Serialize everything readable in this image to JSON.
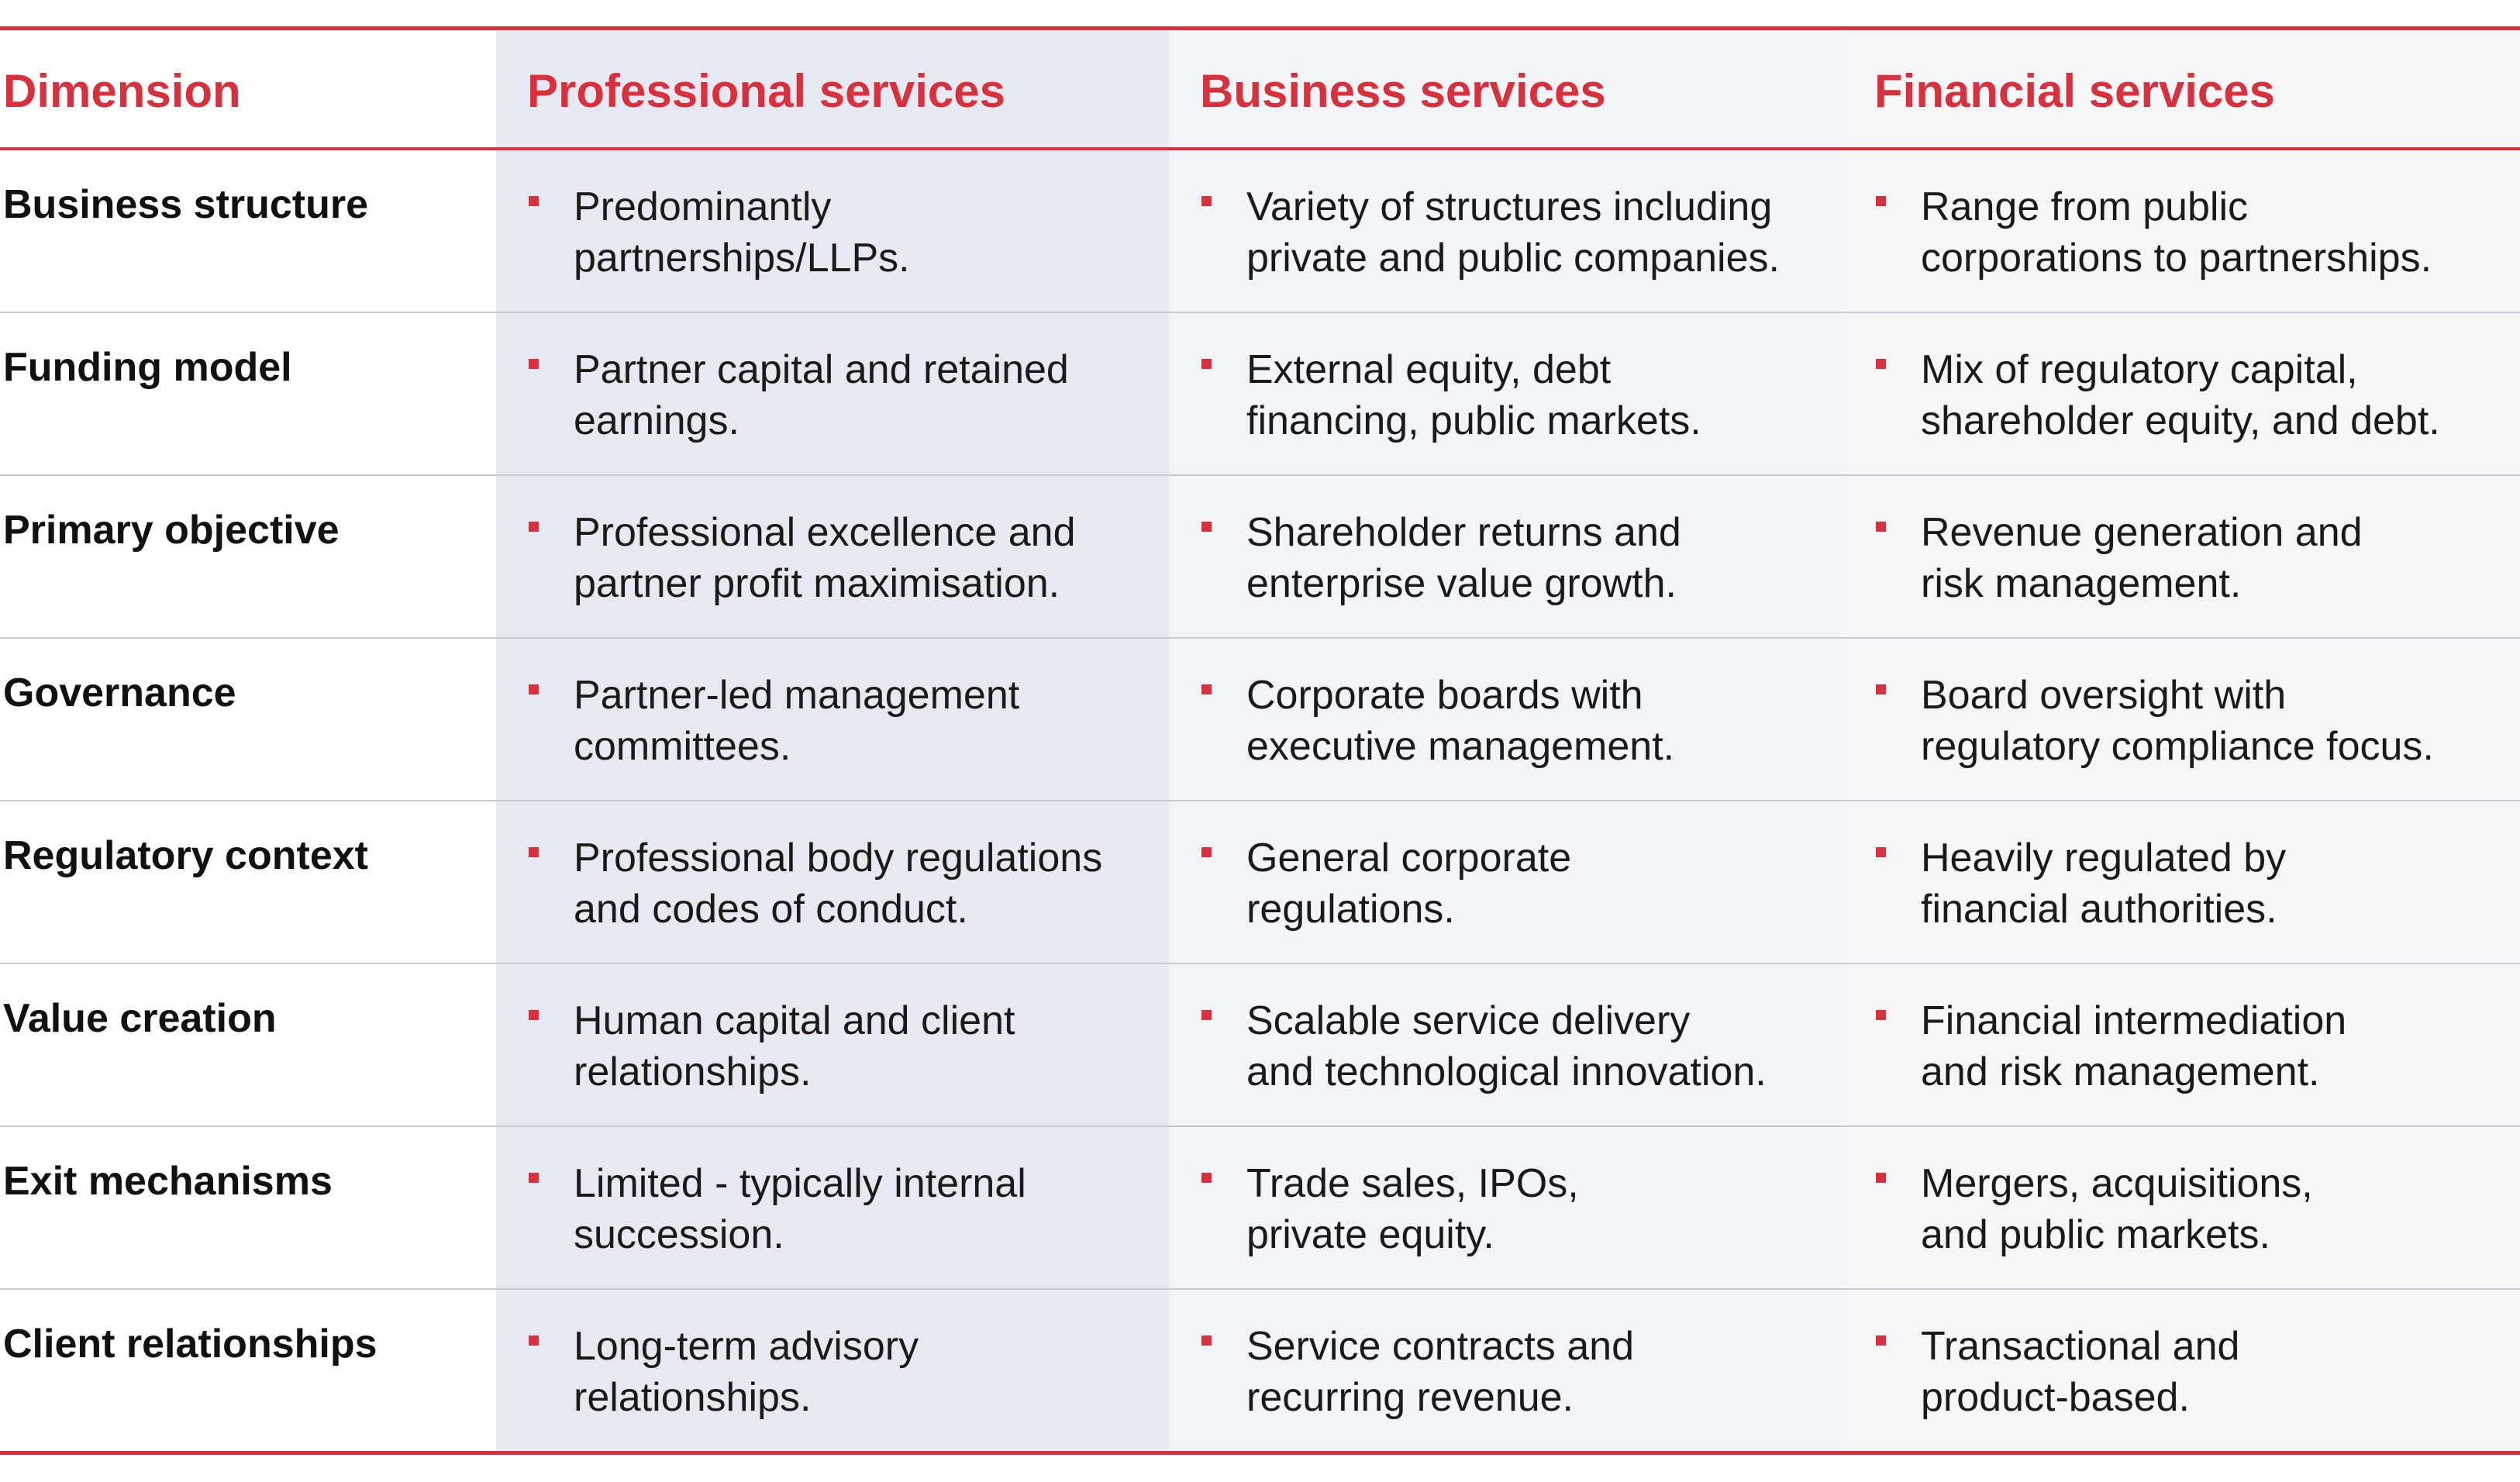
{
  "header": {
    "dimension": "Dimension",
    "professional": "Professional services",
    "business": "Business services",
    "financial": "Financial services"
  },
  "colors": {
    "accent": "#d9303e",
    "professional_bg": "#e6e9f1",
    "business_bg": "#f1f5f8",
    "financial_bg": "#f5f6f8",
    "divider": "#c8ccd2"
  },
  "rows": [
    {
      "dimension": "Business structure",
      "professional": "Predominantly\npartnerships/LLPs.",
      "business": "Variety of structures including\nprivate and public companies.",
      "financial": "Range from public\ncorporations to partnerships."
    },
    {
      "dimension": "Funding model",
      "professional": "Partner capital and retained\nearnings.",
      "business": "External equity, debt\nfinancing, public markets.",
      "financial": "Mix of regulatory capital,\nshareholder equity, and debt."
    },
    {
      "dimension": "Primary objective",
      "professional": "Professional excellence and\npartner profit maximisation.",
      "business": "Shareholder returns and\nenterprise value growth.",
      "financial": "Revenue generation and\nrisk management."
    },
    {
      "dimension": "Governance",
      "professional": "Partner-led management\ncommittees.",
      "business": "Corporate boards with\nexecutive management.",
      "financial": "Board oversight with\nregulatory compliance focus."
    },
    {
      "dimension": "Regulatory context",
      "professional": "Professional body regulations\nand codes of conduct.",
      "business": "General corporate\nregulations.",
      "financial": "Heavily regulated by\nfinancial authorities."
    },
    {
      "dimension": "Value creation",
      "professional": "Human capital and client\nrelationships.",
      "business": "Scalable service delivery\nand technological innovation.",
      "financial": "Financial intermediation\nand risk management."
    },
    {
      "dimension": "Exit mechanisms",
      "professional": "Limited - typically internal\nsuccession.",
      "business": "Trade sales, IPOs,\nprivate equity.",
      "financial": "Mergers, acquisitions,\nand public markets."
    },
    {
      "dimension": "Client relationships",
      "professional": "Long-term advisory\nrelationships.",
      "business": "Service contracts and\nrecurring revenue.",
      "financial": "Transactional and\nproduct-based."
    }
  ]
}
